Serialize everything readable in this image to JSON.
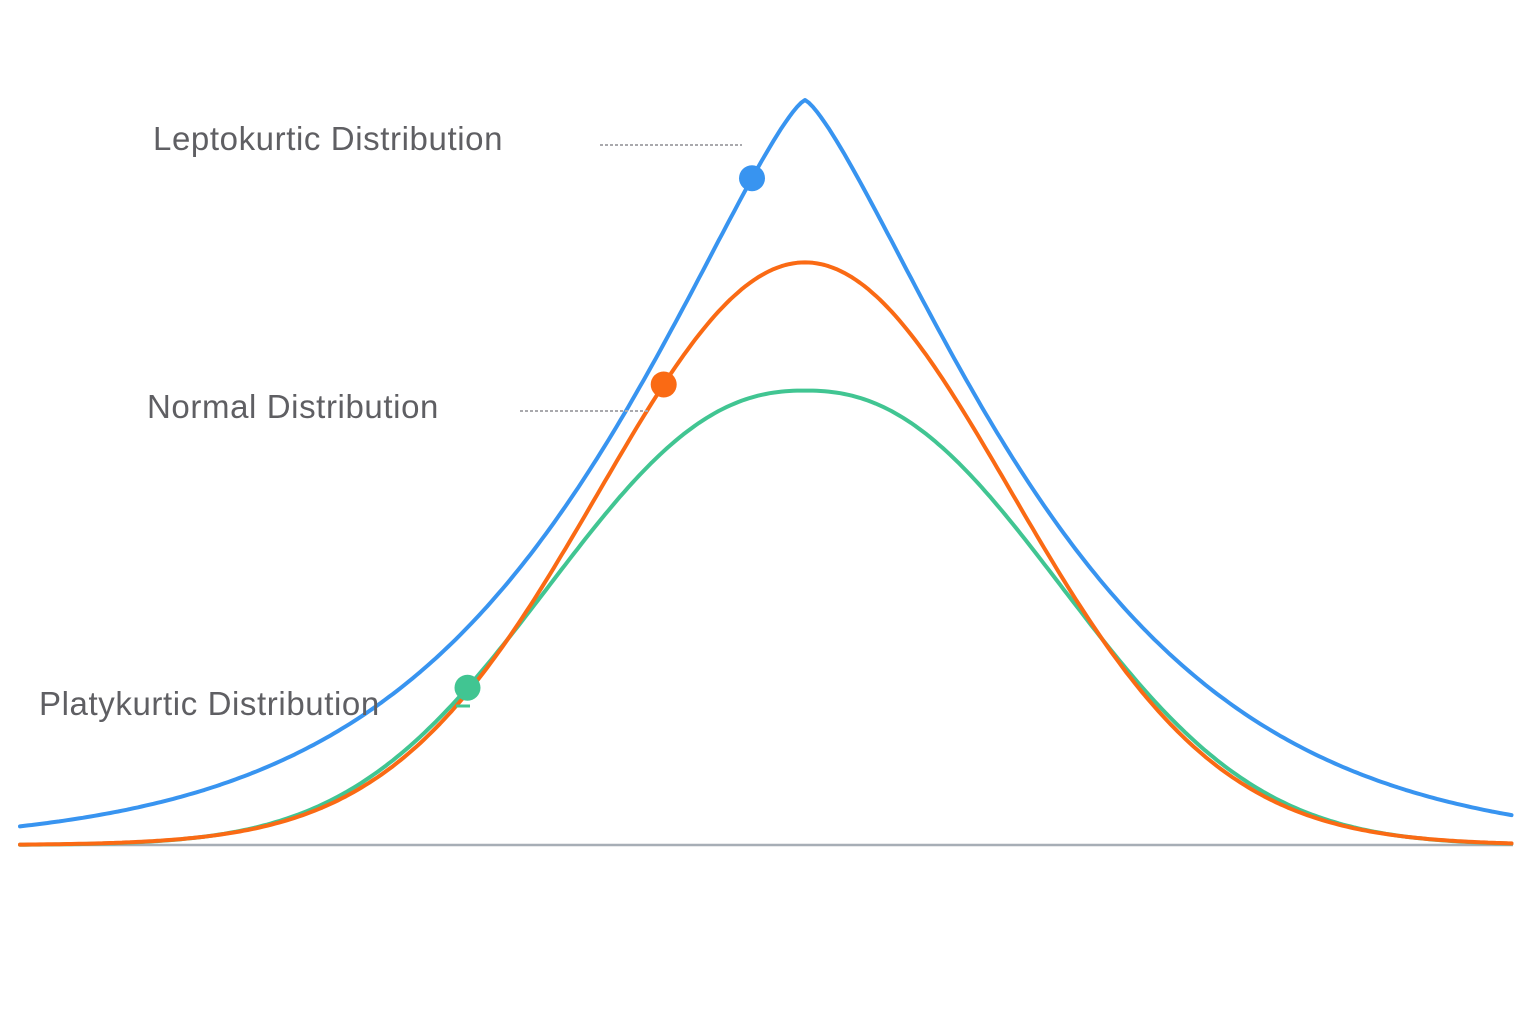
{
  "chart_data": {
    "type": "line",
    "title": "",
    "xlabel": "",
    "ylabel": "",
    "x_range": [
      -4,
      4
    ],
    "y_range": [
      0,
      1
    ],
    "grid": false,
    "axis": "baseline only",
    "series": [
      {
        "name": "Leptokurtic Distribution",
        "color": "#3894f0",
        "peak": 1.0,
        "spread": 0.86,
        "tail_power": 1.3,
        "marker_x": -0.27
      },
      {
        "name": "Normal Distribution",
        "color": "#fa6a14",
        "peak": 0.782,
        "spread": 1.05,
        "tail_power": 2.0,
        "marker_x": -0.72
      },
      {
        "name": "Platykurtic Distribution",
        "color": "#41c592",
        "peak": 0.61,
        "spread": 1.24,
        "tail_power": 2.3,
        "marker_x": -1.72
      }
    ]
  }
}
